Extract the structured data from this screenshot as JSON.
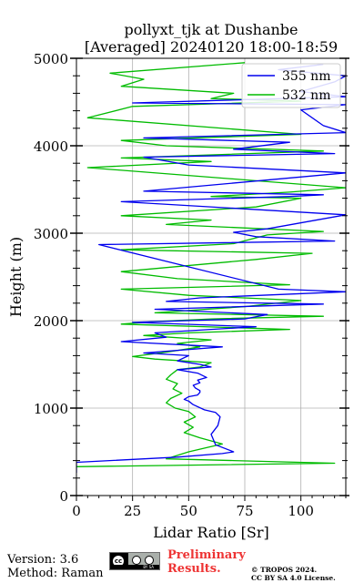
{
  "title": {
    "line1": "pollyxt_tjk at Dushanbe",
    "line2": "[Averaged] 20240120 18:00-18:59"
  },
  "footer": {
    "version": "Version: 3.6",
    "method": "Method: Raman",
    "preliminary_line1": "Preliminary",
    "preliminary_line2": "Results.",
    "copyright_line1": "© TROPOS 2024.",
    "copyright_line2": "CC BY SA 4.0 License.",
    "badge_text": "BY SA"
  },
  "colors": {
    "series_355": "#0000ee",
    "series_532": "#00bb00",
    "grid": "#b0b0b0",
    "preliminary_text": "#ee3434"
  },
  "chart_data": {
    "type": "line",
    "xlabel": "Lidar Ratio [Sr]",
    "ylabel": "Height (m)",
    "xlim": [
      0,
      120
    ],
    "ylim": [
      0,
      5000
    ],
    "xticks": [
      0,
      25,
      50,
      75,
      100
    ],
    "xtick_labels": [
      "0",
      "25",
      "50",
      "75",
      "100"
    ],
    "yticks": [
      0,
      1000,
      2000,
      3000,
      4000,
      5000
    ],
    "ytick_labels": [
      "0",
      "1000",
      "2000",
      "3000",
      "4000",
      "5000"
    ],
    "grid": true,
    "legend_position": "top-right",
    "series": [
      {
        "name": "355 nm",
        "color": "#0000ee",
        "x": [
          0,
          0,
          45,
          65,
          70,
          62,
          60,
          63,
          64,
          62,
          57,
          52,
          50,
          48,
          50,
          54,
          55,
          55,
          53,
          52,
          55,
          54,
          58,
          54,
          45,
          60,
          55,
          45,
          50,
          30,
          65,
          20,
          40,
          35,
          60,
          80,
          25,
          75,
          85,
          35,
          60,
          110,
          40,
          55,
          120,
          90,
          10,
          115,
          80,
          70,
          85,
          120,
          20,
          95,
          110,
          30,
          120,
          50,
          30,
          115,
          70,
          95,
          30,
          120,
          110,
          100,
          120,
          25,
          120,
          100,
          115,
          120,
          90,
          110
        ],
        "y": [
          260,
          380,
          440,
          480,
          500,
          580,
          700,
          800,
          900,
          950,
          980,
          1040,
          1080,
          1100,
          1130,
          1150,
          1180,
          1200,
          1230,
          1260,
          1290,
          1320,
          1350,
          1400,
          1440,
          1470,
          1500,
          1540,
          1600,
          1630,
          1700,
          1760,
          1810,
          1860,
          1900,
          1930,
          1980,
          2020,
          2070,
          2130,
          2150,
          2190,
          2220,
          2260,
          2330,
          2360,
          2870,
          2910,
          2960,
          3010,
          3050,
          3210,
          3360,
          3420,
          3440,
          3480,
          3690,
          3780,
          3870,
          3910,
          3960,
          4040,
          4090,
          4150,
          4230,
          4410,
          4470,
          4490,
          4560,
          4620,
          4730,
          4800,
          4870,
          4930
        ]
      },
      {
        "name": "532 nm",
        "color": "#00bb00",
        "x": [
          0,
          115,
          70,
          40,
          50,
          65,
          55,
          48,
          52,
          48,
          53,
          50,
          44,
          40,
          42,
          47,
          43,
          45,
          40,
          42,
          45,
          55,
          60,
          35,
          25,
          40,
          55,
          45,
          60,
          30,
          50,
          95,
          20,
          35,
          60,
          110,
          35,
          75,
          100,
          50,
          20,
          95,
          45,
          20,
          80,
          105,
          20,
          70,
          85,
          110,
          40,
          60,
          20,
          80,
          100,
          60,
          95,
          120,
          5,
          60,
          20,
          110,
          40,
          20,
          100,
          5,
          25,
          100,
          60,
          70,
          20,
          30,
          15,
          75
        ],
        "y": [
          330,
          370,
          400,
          420,
          500,
          590,
          660,
          720,
          780,
          840,
          900,
          960,
          1000,
          1060,
          1110,
          1170,
          1220,
          1280,
          1330,
          1380,
          1440,
          1470,
          1520,
          1560,
          1590,
          1640,
          1700,
          1740,
          1780,
          1830,
          1860,
          1900,
          1960,
          1990,
          2020,
          2050,
          2090,
          2160,
          2230,
          2290,
          2360,
          2410,
          2480,
          2560,
          2700,
          2770,
          2810,
          2880,
          2980,
          3020,
          3100,
          3150,
          3200,
          3300,
          3400,
          3420,
          3470,
          3520,
          3750,
          3820,
          3860,
          3940,
          4000,
          4060,
          4130,
          4320,
          4450,
          4510,
          4540,
          4600,
          4680,
          4760,
          4830,
          4950
        ]
      }
    ]
  }
}
